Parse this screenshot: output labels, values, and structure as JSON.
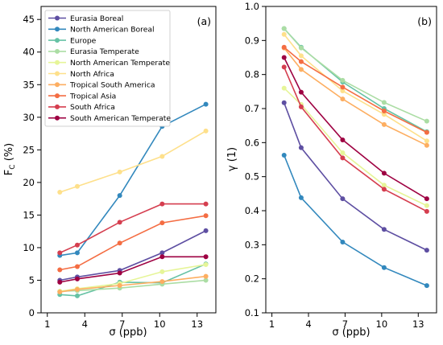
{
  "chart_data": [
    {
      "type": "line",
      "panel_label": "(a)",
      "xlabel": "σ (ppb)",
      "ylabel": "F_C (%)",
      "ylabel_main": "F",
      "ylabel_sub": "C",
      "ylabel_rest": " (%)",
      "xlim": [
        0.5,
        14.5
      ],
      "ylim": [
        0,
        47
      ],
      "xticks": [
        1,
        4,
        7,
        10,
        13
      ],
      "yticks": [
        0,
        5,
        10,
        15,
        20,
        25,
        30,
        35,
        40,
        45
      ],
      "x": [
        2,
        3.4,
        6.8,
        10.2,
        13.7
      ],
      "legend": "top-left",
      "grid": false,
      "series": [
        {
          "name": "Eurasia Boreal",
          "color": "#5e4fa2",
          "values": [
            5.0,
            5.5,
            6.5,
            9.2,
            12.6
          ]
        },
        {
          "name": "North American Boreal",
          "color": "#3288bd",
          "values": [
            8.8,
            9.2,
            18.0,
            28.6,
            32.0
          ]
        },
        {
          "name": "Europe",
          "color": "#66c2a5",
          "values": [
            2.8,
            2.6,
            4.7,
            4.6,
            7.5
          ]
        },
        {
          "name": "Eurasia Temperate",
          "color": "#abdda4",
          "values": [
            3.3,
            3.4,
            3.8,
            4.4,
            5.0
          ]
        },
        {
          "name": "North American Temperate",
          "color": "#e6f598",
          "values": [
            3.3,
            3.7,
            4.5,
            6.3,
            7.4
          ]
        },
        {
          "name": "North Africa",
          "color": "#fee08b",
          "values": [
            18.5,
            19.4,
            21.6,
            24.0,
            27.9
          ]
        },
        {
          "name": "Tropical South America",
          "color": "#fdae61",
          "values": [
            3.2,
            3.6,
            4.2,
            4.8,
            5.6
          ]
        },
        {
          "name": "Tropical Asia",
          "color": "#f46d43",
          "values": [
            6.6,
            7.1,
            10.7,
            13.8,
            14.9
          ]
        },
        {
          "name": "South Africa",
          "color": "#d53e4f",
          "values": [
            9.2,
            10.4,
            13.9,
            16.7,
            16.7
          ]
        },
        {
          "name": "South American Temperate",
          "color": "#9e0142",
          "values": [
            4.7,
            5.2,
            6.1,
            8.6,
            8.6
          ]
        }
      ]
    },
    {
      "type": "line",
      "panel_label": "(b)",
      "xlabel": "σ (ppb)",
      "ylabel": "γ (1)",
      "xlim": [
        0.5,
        14.5
      ],
      "ylim": [
        0.1,
        1.0
      ],
      "xticks": [
        1,
        4,
        7,
        10,
        13
      ],
      "yticks": [
        0.1,
        0.2,
        0.3,
        0.4,
        0.5,
        0.6,
        0.7,
        0.8,
        0.9,
        1.0
      ],
      "ytick_labels": [
        "0.1",
        "0.2",
        "0.3",
        "0.4",
        "0.5",
        "0.6",
        "0.7",
        "0.8",
        "0.9",
        "1.0"
      ],
      "x": [
        2,
        3.4,
        6.8,
        10.2,
        13.7
      ],
      "grid": false,
      "series": [
        {
          "color": "#5e4fa2",
          "values": [
            0.717,
            0.585,
            0.435,
            0.345,
            0.284
          ]
        },
        {
          "color": "#3288bd",
          "values": [
            0.563,
            0.438,
            0.308,
            0.233,
            0.18
          ]
        },
        {
          "color": "#66c2a5",
          "values": [
            0.935,
            0.88,
            0.778,
            0.7,
            0.632
          ]
        },
        {
          "color": "#abdda4",
          "values": [
            0.935,
            0.878,
            0.783,
            0.718,
            0.663
          ]
        },
        {
          "color": "#e6f598",
          "values": [
            0.76,
            0.712,
            0.57,
            0.475,
            0.415
          ]
        },
        {
          "color": "#fee08b",
          "values": [
            0.918,
            0.855,
            0.752,
            0.683,
            0.605
          ]
        },
        {
          "color": "#fdae61",
          "values": [
            0.878,
            0.815,
            0.728,
            0.653,
            0.592
          ]
        },
        {
          "color": "#f46d43",
          "values": [
            0.88,
            0.838,
            0.763,
            0.693,
            0.63
          ]
        },
        {
          "color": "#d53e4f",
          "values": [
            0.822,
            0.705,
            0.555,
            0.463,
            0.398
          ]
        },
        {
          "color": "#9e0142",
          "values": [
            0.85,
            0.748,
            0.608,
            0.51,
            0.435
          ]
        }
      ]
    }
  ]
}
